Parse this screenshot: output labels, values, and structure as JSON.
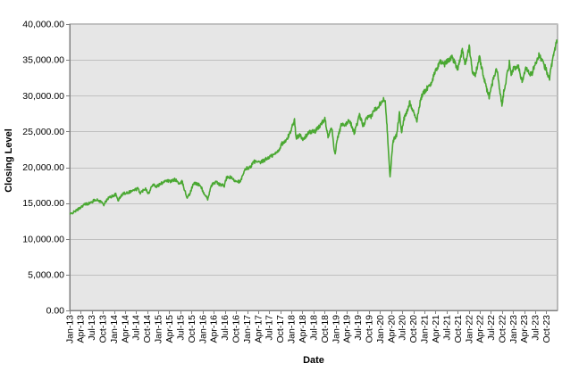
{
  "chart_data": {
    "type": "line",
    "title": "",
    "xlabel": "Date",
    "ylabel": "Closing Level",
    "ylim": [
      0,
      40000
    ],
    "y_ticks": [
      0,
      5000,
      10000,
      15000,
      20000,
      25000,
      30000,
      35000,
      40000
    ],
    "y_tick_labels": [
      "0.00",
      "5,000.00",
      "10,000.00",
      "15,000.00",
      "20,000.00",
      "25,000.00",
      "30,000.00",
      "35,000.00",
      "40,000.00"
    ],
    "x_tick_labels": [
      "Jan-13",
      "Apr-13",
      "Jul-13",
      "Oct-13",
      "Jan-14",
      "Apr-14",
      "Jul-14",
      "Oct-14",
      "Jan-15",
      "Apr-15",
      "Jul-15",
      "Oct-15",
      "Jan-16",
      "Apr-16",
      "Jul-16",
      "Oct-16",
      "Jan-17",
      "Apr-17",
      "Jul-17",
      "Oct-17",
      "Jan-18",
      "Apr-18",
      "Jul-18",
      "Oct-18",
      "Jan-19",
      "Apr-19",
      "Jul-19",
      "Oct-19",
      "Jan-20",
      "Apr-20",
      "Jul-20",
      "Oct-20",
      "Jan-21",
      "Apr-21",
      "Jul-21",
      "Oct-21",
      "Jan-22",
      "Apr-22",
      "Jul-22",
      "Oct-22",
      "Jan-23",
      "Apr-23",
      "Jul-23",
      "Oct-23"
    ],
    "grid": "horizontal",
    "legend": "none",
    "colors": {
      "line": "#4aa832",
      "plot_bg": "#e6e6e6",
      "grid": "#c0c0c0"
    },
    "series": [
      {
        "x": [
          "2013-01-02",
          "2013-03-01",
          "2013-05-01",
          "2013-06-20",
          "2013-08-01",
          "2013-09-15",
          "2013-10-09",
          "2013-11-15",
          "2014-01-15",
          "2014-02-04",
          "2014-03-15",
          "2014-05-15",
          "2014-07-15",
          "2014-08-07",
          "2014-09-15",
          "2014-10-15",
          "2014-11-15",
          "2014-12-16",
          "2015-01-15",
          "2015-02-15",
          "2015-03-02",
          "2015-04-15",
          "2015-05-19",
          "2015-06-29",
          "2015-07-15",
          "2015-08-24",
          "2015-09-15",
          "2015-10-15",
          "2015-11-03",
          "2015-12-15",
          "2016-01-20",
          "2016-02-11",
          "2016-03-15",
          "2016-04-20",
          "2016-05-15",
          "2016-06-27",
          "2016-07-15",
          "2016-08-15",
          "2016-09-15",
          "2016-10-15",
          "2016-11-04",
          "2016-12-20",
          "2017-01-25",
          "2017-03-01",
          "2017-04-15",
          "2017-05-15",
          "2017-07-01",
          "2017-08-15",
          "2017-09-15",
          "2017-10-15",
          "2017-11-15",
          "2017-12-15",
          "2018-01-26",
          "2018-02-08",
          "2018-03-15",
          "2018-04-02",
          "2018-05-15",
          "2018-06-15",
          "2018-07-15",
          "2018-08-15",
          "2018-10-03",
          "2018-10-29",
          "2018-11-30",
          "2018-12-24",
          "2019-01-15",
          "2019-02-15",
          "2019-03-15",
          "2019-04-23",
          "2019-06-03",
          "2019-07-15",
          "2019-08-15",
          "2019-09-15",
          "2019-10-15",
          "2019-11-15",
          "2019-12-15",
          "2020-01-17",
          "2020-02-12",
          "2020-02-28",
          "2020-03-23",
          "2020-04-15",
          "2020-05-15",
          "2020-06-08",
          "2020-06-26",
          "2020-07-15",
          "2020-08-15",
          "2020-09-02",
          "2020-10-01",
          "2020-10-30",
          "2020-11-30",
          "2020-12-31",
          "2021-02-15",
          "2021-03-15",
          "2021-05-07",
          "2021-06-15",
          "2021-07-15",
          "2021-08-15",
          "2021-09-30",
          "2021-11-08",
          "2021-11-30",
          "2022-01-04",
          "2022-01-27",
          "2022-02-24",
          "2022-03-29",
          "2022-04-15",
          "2022-05-20",
          "2022-06-17",
          "2022-07-15",
          "2022-08-16",
          "2022-09-30",
          "2022-10-15",
          "2022-11-30",
          "2022-12-15",
          "2023-01-15",
          "2023-02-15",
          "2023-03-15",
          "2023-04-15",
          "2023-05-31",
          "2023-06-30",
          "2023-07-31",
          "2023-08-31",
          "2023-09-30",
          "2023-10-27",
          "2023-11-15",
          "2023-12-01",
          "2023-12-29"
        ],
        "values": [
          13400,
          14000,
          14800,
          15000,
          15500,
          15200,
          14800,
          15700,
          16200,
          15400,
          16300,
          16600,
          17000,
          16400,
          17100,
          16300,
          17700,
          17300,
          17600,
          18000,
          18200,
          18000,
          18300,
          17600,
          18000,
          15800,
          16200,
          17600,
          17800,
          17400,
          16000,
          15600,
          17500,
          18000,
          17600,
          17400,
          18500,
          18600,
          18200,
          18100,
          17900,
          19800,
          20000,
          20800,
          20600,
          20900,
          21400,
          21800,
          22300,
          23300,
          23600,
          24600,
          26600,
          24000,
          24700,
          23700,
          24700,
          25000,
          25000,
          25600,
          26800,
          24400,
          25500,
          21800,
          24000,
          25900,
          25800,
          26600,
          24800,
          27200,
          25800,
          26900,
          27000,
          28000,
          28500,
          29300,
          29500,
          25400,
          18600,
          23600,
          24500,
          27500,
          25000,
          26700,
          28000,
          29100,
          27800,
          26500,
          29600,
          30600,
          31500,
          32600,
          34800,
          34400,
          35000,
          35400,
          33800,
          36400,
          34400,
          36800,
          33500,
          33000,
          35300,
          34000,
          31300,
          29900,
          31900,
          34000,
          28700,
          30500,
          34600,
          33200,
          33900,
          34000,
          32000,
          33900,
          32900,
          34400,
          35600,
          34700,
          33600,
          32500,
          34500,
          36100,
          37700
        ]
      }
    ]
  }
}
